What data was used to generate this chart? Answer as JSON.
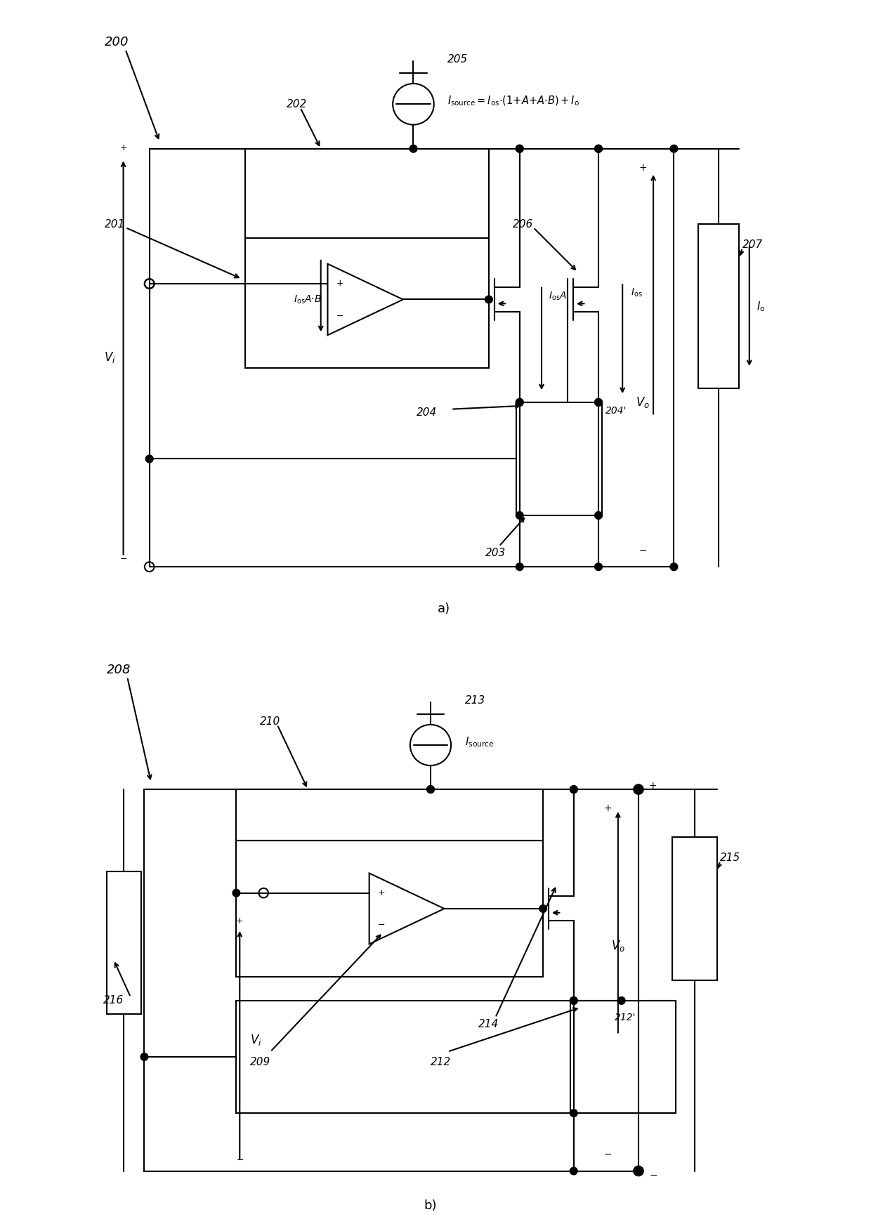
{
  "bg_color": "#ffffff",
  "line_color": "#000000",
  "lw": 1.5,
  "fig_width": 12.4,
  "fig_height": 17.53,
  "label_style": "italic"
}
